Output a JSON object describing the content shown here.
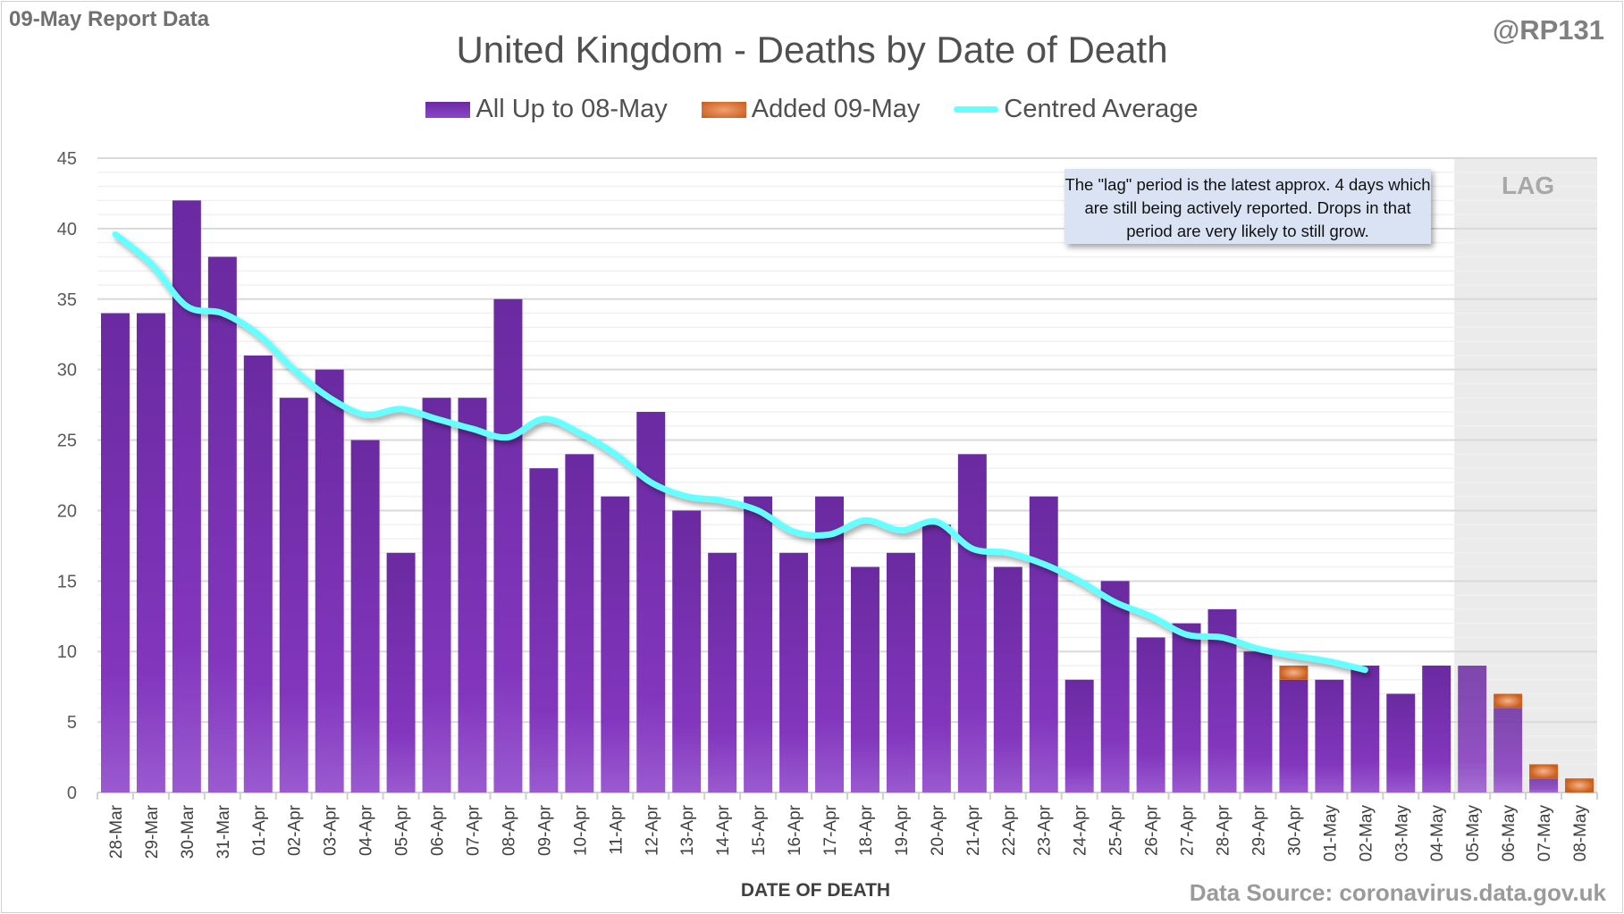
{
  "header": {
    "report_label": "09-May Report Data",
    "handle": "@RP131"
  },
  "note": {
    "text": "The \"lag\" period is the latest approx. 4 days which are still being actively reported.  Drops in that period are very likely to still grow.",
    "lag_label": "LAG"
  },
  "footer": {
    "source": "Data Source: coronavirus.data.gov.uk"
  },
  "colors": {
    "base": "#7030a0",
    "added": "#e07020",
    "average": "#66ffff",
    "lag_shade": "#ebebeb"
  },
  "chart_data": {
    "type": "bar",
    "stacked": true,
    "title": "United Kingdom - Deaths by Date of Death",
    "xlabel": "DATE OF DEATH",
    "ylabel": "",
    "ylim": [
      0,
      45
    ],
    "yticks": [
      0,
      5,
      10,
      15,
      20,
      25,
      30,
      35,
      40,
      45
    ],
    "grid": true,
    "legend_position": "top",
    "lag_start": "05-May",
    "categories": [
      "28-Mar",
      "29-Mar",
      "30-Mar",
      "31-Mar",
      "01-Apr",
      "02-Apr",
      "03-Apr",
      "04-Apr",
      "05-Apr",
      "06-Apr",
      "07-Apr",
      "08-Apr",
      "09-Apr",
      "10-Apr",
      "11-Apr",
      "12-Apr",
      "13-Apr",
      "14-Apr",
      "15-Apr",
      "16-Apr",
      "17-Apr",
      "18-Apr",
      "19-Apr",
      "20-Apr",
      "21-Apr",
      "22-Apr",
      "23-Apr",
      "24-Apr",
      "25-Apr",
      "26-Apr",
      "27-Apr",
      "28-Apr",
      "29-Apr",
      "30-Apr",
      "01-May",
      "02-May",
      "03-May",
      "04-May",
      "05-May",
      "06-May",
      "07-May",
      "08-May"
    ],
    "series": [
      {
        "name": "All Up to 08-May",
        "type": "bar",
        "values": [
          34,
          34,
          42,
          38,
          31,
          28,
          30,
          25,
          17,
          28,
          28,
          35,
          23,
          24,
          21,
          27,
          20,
          17,
          21,
          17,
          21,
          16,
          17,
          19,
          24,
          16,
          21,
          8,
          15,
          11,
          12,
          13,
          10,
          8,
          8,
          9,
          7,
          9,
          9,
          6,
          1,
          0
        ]
      },
      {
        "name": "Added 09-May",
        "type": "bar",
        "values": [
          0,
          0,
          0,
          0,
          0,
          0,
          0,
          0,
          0,
          0,
          0,
          0,
          0,
          0,
          0,
          0,
          0,
          0,
          0,
          0,
          0,
          0,
          0,
          0,
          0,
          0,
          0,
          0,
          0,
          0,
          0,
          0,
          0,
          1,
          0,
          0,
          0,
          0,
          0,
          1,
          1,
          1
        ]
      },
      {
        "name": "Centred Average",
        "type": "line",
        "values": [
          39.6,
          37.5,
          34.5,
          34,
          32.5,
          30,
          28,
          26.8,
          27.2,
          26.5,
          25.8,
          25.2,
          26.5,
          25.5,
          24,
          22,
          21,
          20.7,
          20,
          18.5,
          18.3,
          19.3,
          18.6,
          19.2,
          17.3,
          17,
          16.2,
          15,
          13.5,
          12.5,
          11.2,
          11,
          10.2,
          9.7,
          9.3,
          8.7,
          null,
          null,
          null,
          null,
          null,
          null
        ]
      }
    ]
  }
}
